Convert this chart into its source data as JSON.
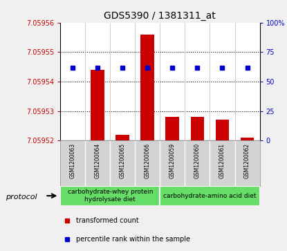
{
  "title": "GDS5390 / 1381311_at",
  "samples": [
    "GSM1200063",
    "GSM1200064",
    "GSM1200065",
    "GSM1200066",
    "GSM1200059",
    "GSM1200060",
    "GSM1200061",
    "GSM1200062"
  ],
  "transformed_counts": [
    7.05952,
    7.059544,
    7.059522,
    7.059556,
    7.059528,
    7.059528,
    7.059527,
    7.059521
  ],
  "percentile_ranks": [
    62,
    62,
    62,
    62,
    62,
    62,
    62,
    62
  ],
  "ylim_left": [
    7.05952,
    7.05956
  ],
  "ylim_right": [
    0,
    100
  ],
  "yticks_left": [
    7.05952,
    7.05953,
    7.05954,
    7.05955,
    7.05956
  ],
  "yticks_right": [
    0,
    25,
    50,
    75,
    100
  ],
  "group1_label": "carbohydrate-whey protein\nhydrolysate diet",
  "group2_label": "carbohydrate-amino acid diet",
  "group1_indices": [
    0,
    1,
    2,
    3
  ],
  "group2_indices": [
    4,
    5,
    6,
    7
  ],
  "protocol_label": "protocol",
  "legend_bar_label": "transformed count",
  "legend_dot_label": "percentile rank within the sample",
  "bar_color": "#cc0000",
  "dot_color": "#0000cc",
  "group1_color": "#66dd66",
  "group2_color": "#66dd66",
  "left_axis_color": "#cc0000",
  "right_axis_color": "#0000cc",
  "background_color": "#f0f0f0",
  "plot_bg_color": "#ffffff",
  "sample_bg_color": "#d3d3d3",
  "title_fontsize": 10,
  "tick_fontsize": 7,
  "sample_fontsize": 5.5,
  "group_fontsize": 6.5,
  "legend_fontsize": 7,
  "protocol_fontsize": 8
}
